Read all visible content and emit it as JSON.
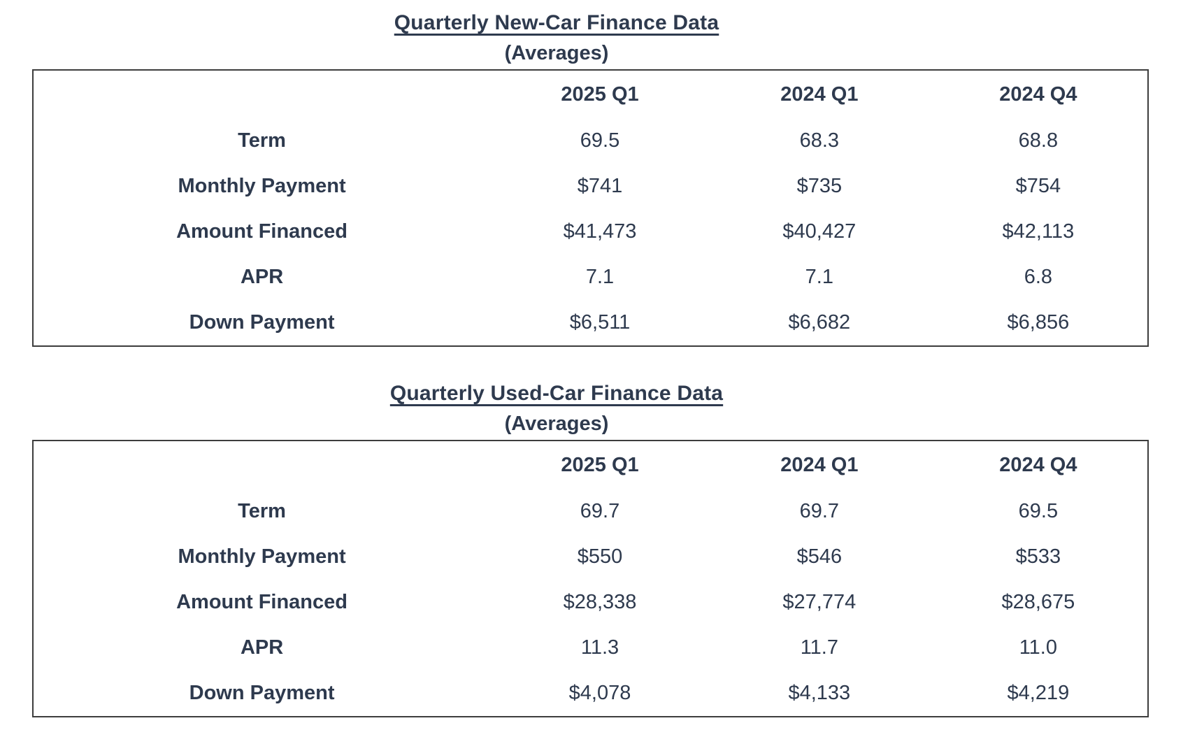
{
  "page": {
    "background": "#ffffff",
    "text_color": "#2e3a4e",
    "table_border_color": "#3d3d3d"
  },
  "tables": [
    {
      "title": "Quarterly New-Car Finance Data",
      "subtitle": "(Averages)",
      "columns": [
        "2025 Q1",
        "2024 Q1",
        "2024 Q4"
      ],
      "rows": [
        {
          "label": "Term",
          "values": [
            "69.5",
            "68.3",
            "68.8"
          ]
        },
        {
          "label": "Monthly Payment",
          "values": [
            "$741",
            "$735",
            "$754"
          ]
        },
        {
          "label": "Amount Financed",
          "values": [
            "$41,473",
            "$40,427",
            "$42,113"
          ]
        },
        {
          "label": "APR",
          "values": [
            "7.1",
            "7.1",
            "6.8"
          ]
        },
        {
          "label": "Down Payment",
          "values": [
            "$6,511",
            "$6,682",
            "$6,856"
          ]
        }
      ]
    },
    {
      "title": "Quarterly Used-Car Finance Data",
      "subtitle": "(Averages)",
      "columns": [
        "2025 Q1",
        "2024 Q1",
        "2024 Q4"
      ],
      "rows": [
        {
          "label": "Term",
          "values": [
            "69.7",
            "69.7",
            "69.5"
          ]
        },
        {
          "label": "Monthly Payment",
          "values": [
            "$550",
            "$546",
            "$533"
          ]
        },
        {
          "label": "Amount Financed",
          "values": [
            "$28,338",
            "$27,774",
            "$28,675"
          ]
        },
        {
          "label": "APR",
          "values": [
            "11.3",
            "11.7",
            "11.0"
          ]
        },
        {
          "label": "Down Payment",
          "values": [
            "$4,078",
            "$4,133",
            "$4,219"
          ]
        }
      ]
    }
  ],
  "chart_data": [
    {
      "type": "table",
      "title": "Quarterly New-Car Finance Data (Averages)",
      "categories": [
        "2025 Q1",
        "2024 Q1",
        "2024 Q4"
      ],
      "series": [
        {
          "name": "Term",
          "values": [
            69.5,
            68.3,
            68.8
          ]
        },
        {
          "name": "Monthly Payment",
          "values": [
            741,
            735,
            754
          ]
        },
        {
          "name": "Amount Financed",
          "values": [
            41473,
            40427,
            42113
          ]
        },
        {
          "name": "APR",
          "values": [
            7.1,
            7.1,
            6.8
          ]
        },
        {
          "name": "Down Payment",
          "values": [
            6511,
            6682,
            6856
          ]
        }
      ]
    },
    {
      "type": "table",
      "title": "Quarterly Used-Car Finance Data (Averages)",
      "categories": [
        "2025 Q1",
        "2024 Q1",
        "2024 Q4"
      ],
      "series": [
        {
          "name": "Term",
          "values": [
            69.7,
            69.7,
            69.5
          ]
        },
        {
          "name": "Monthly Payment",
          "values": [
            550,
            546,
            533
          ]
        },
        {
          "name": "Amount Financed",
          "values": [
            28338,
            27774,
            28675
          ]
        },
        {
          "name": "APR",
          "values": [
            11.3,
            11.7,
            11.0
          ]
        },
        {
          "name": "Down Payment",
          "values": [
            4078,
            4133,
            4219
          ]
        }
      ]
    }
  ]
}
